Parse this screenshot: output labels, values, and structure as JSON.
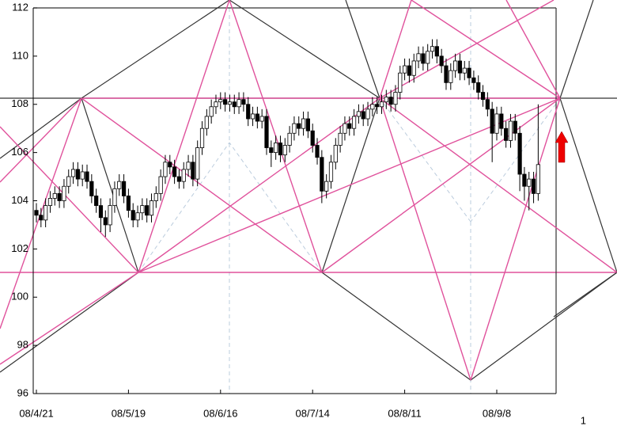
{
  "chart_data": {
    "type": "candlestick",
    "categories": [
      "08/4/21",
      null,
      null,
      null,
      null,
      null,
      null,
      null,
      null,
      null,
      null,
      null,
      null,
      null,
      null,
      null,
      null,
      null,
      null,
      null,
      "08/5/19",
      null,
      null,
      null,
      null,
      null,
      null,
      null,
      null,
      null,
      null,
      null,
      null,
      null,
      null,
      null,
      null,
      null,
      null,
      null,
      "08/6/16",
      null,
      null,
      null,
      null,
      null,
      null,
      null,
      null,
      null,
      null,
      null,
      null,
      null,
      null,
      null,
      null,
      null,
      null,
      null,
      "08/7/14",
      null,
      null,
      null,
      null,
      null,
      null,
      null,
      null,
      null,
      null,
      null,
      null,
      null,
      null,
      null,
      null,
      null,
      null,
      null,
      "08/8/11",
      null,
      null,
      null,
      null,
      null,
      null,
      null,
      null,
      null,
      null,
      null,
      null,
      null,
      null,
      null,
      null,
      null,
      null,
      null,
      "08/9/8",
      null,
      null,
      null,
      null,
      null,
      null,
      null,
      null,
      null
    ],
    "open": [
      103.6,
      103.4,
      103.2,
      103.8,
      104.1,
      104.3,
      104.0,
      104.6,
      105.0,
      105.3,
      104.9,
      105.2,
      104.8,
      104.2,
      103.8,
      103.3,
      103.0,
      103.8,
      104.5,
      104.8,
      104.2,
      103.6,
      103.2,
      103.5,
      103.8,
      103.4,
      104.0,
      104.3,
      105.0,
      105.6,
      105.4,
      105.0,
      104.8,
      105.3,
      105.6,
      104.9,
      106.2,
      107.0,
      107.5,
      107.9,
      108.1,
      108.2,
      108.0,
      108.1,
      107.9,
      108.2,
      108.0,
      107.4,
      107.6,
      107.3,
      107.5,
      106.2,
      106.0,
      106.4,
      105.9,
      106.3,
      106.8,
      107.2,
      107.0,
      107.4,
      106.9,
      106.3,
      105.8,
      104.4,
      104.8,
      105.6,
      106.3,
      106.8,
      107.2,
      107.0,
      107.5,
      107.7,
      107.4,
      107.8,
      108.0,
      107.9,
      108.1,
      108.3,
      108.0,
      108.5,
      109.3,
      109.6,
      109.2,
      109.8,
      110.1,
      109.7,
      110.2,
      110.4,
      110.0,
      109.6,
      108.9,
      109.4,
      109.8,
      109.3,
      109.5,
      109.1,
      108.9,
      108.5,
      108.2,
      107.8,
      106.8,
      107.6,
      107.0,
      106.5,
      107.3,
      106.8,
      105.1,
      104.6,
      104.9,
      104.3
    ],
    "high": [
      103.9,
      103.7,
      104.1,
      104.4,
      104.6,
      104.6,
      104.9,
      105.3,
      105.6,
      105.6,
      105.5,
      105.5,
      105.1,
      104.5,
      104.1,
      103.6,
      104.1,
      104.8,
      105.1,
      105.1,
      104.5,
      103.9,
      103.8,
      104.1,
      104.1,
      104.3,
      104.6,
      105.3,
      105.9,
      105.9,
      105.7,
      105.3,
      105.6,
      105.9,
      105.9,
      106.5,
      107.3,
      107.8,
      108.2,
      108.4,
      108.5,
      108.5,
      108.4,
      108.4,
      108.5,
      108.5,
      108.3,
      107.9,
      107.9,
      107.8,
      107.8,
      106.5,
      106.7,
      106.7,
      106.6,
      107.1,
      107.5,
      107.5,
      107.7,
      107.7,
      107.2,
      106.6,
      106.1,
      105.1,
      105.9,
      106.6,
      107.1,
      107.5,
      107.5,
      107.8,
      108.0,
      108.0,
      108.1,
      108.3,
      108.3,
      108.4,
      108.6,
      108.6,
      108.8,
      109.6,
      109.9,
      109.9,
      110.1,
      110.4,
      110.4,
      110.5,
      110.7,
      110.7,
      110.3,
      109.9,
      109.7,
      110.1,
      110.1,
      109.8,
      109.8,
      109.4,
      109.2,
      108.8,
      108.5,
      108.1,
      107.9,
      107.9,
      107.3,
      107.6,
      107.6,
      107.1,
      105.4,
      105.2,
      105.2,
      108.0
    ],
    "low": [
      103.1,
      102.9,
      102.9,
      103.5,
      103.8,
      103.7,
      103.7,
      104.3,
      104.7,
      104.6,
      104.6,
      104.5,
      103.9,
      103.5,
      102.7,
      102.5,
      102.7,
      103.5,
      104.2,
      103.9,
      103.3,
      102.9,
      102.9,
      103.2,
      103.1,
      103.1,
      103.7,
      104.0,
      104.7,
      105.1,
      104.7,
      104.5,
      104.5,
      105.0,
      104.6,
      104.6,
      105.9,
      106.7,
      107.2,
      107.6,
      107.8,
      107.7,
      107.7,
      107.6,
      107.6,
      107.7,
      107.1,
      107.1,
      107.0,
      107.0,
      105.9,
      105.4,
      105.7,
      105.6,
      105.6,
      106.0,
      106.5,
      106.7,
      106.7,
      106.6,
      106.0,
      105.5,
      103.9,
      104.1,
      104.5,
      105.3,
      106.0,
      106.5,
      106.7,
      106.7,
      107.2,
      107.1,
      107.1,
      107.5,
      107.6,
      107.6,
      107.8,
      107.7,
      107.7,
      108.2,
      109.0,
      108.9,
      108.9,
      109.5,
      109.4,
      109.4,
      109.9,
      109.7,
      109.3,
      108.6,
      108.6,
      109.1,
      109.0,
      109.0,
      108.8,
      108.6,
      108.2,
      107.9,
      107.5,
      105.6,
      106.5,
      106.7,
      106.2,
      106.2,
      106.5,
      104.4,
      104.0,
      103.6,
      103.9,
      104.0
    ],
    "close": [
      103.4,
      103.2,
      103.8,
      104.1,
      104.3,
      104.0,
      104.6,
      105.0,
      105.3,
      104.9,
      105.2,
      104.8,
      104.2,
      103.8,
      103.3,
      103.0,
      103.8,
      104.5,
      104.8,
      104.2,
      103.6,
      103.2,
      103.5,
      103.8,
      103.4,
      104.0,
      104.3,
      105.0,
      105.6,
      105.4,
      105.0,
      104.8,
      105.3,
      105.6,
      104.9,
      106.2,
      107.0,
      107.5,
      107.9,
      108.1,
      108.2,
      108.0,
      108.1,
      107.9,
      108.2,
      108.0,
      107.4,
      107.6,
      107.3,
      107.5,
      106.2,
      106.0,
      106.4,
      105.9,
      106.3,
      106.8,
      107.2,
      107.0,
      107.4,
      106.9,
      106.3,
      105.8,
      104.4,
      104.8,
      105.6,
      106.3,
      106.8,
      107.2,
      107.0,
      107.5,
      107.7,
      107.4,
      107.8,
      108.0,
      107.9,
      108.1,
      108.3,
      108.0,
      108.5,
      109.3,
      109.6,
      109.2,
      109.8,
      110.1,
      109.7,
      110.2,
      110.4,
      110.0,
      109.6,
      108.9,
      109.4,
      109.8,
      109.3,
      109.5,
      109.1,
      108.9,
      108.5,
      108.2,
      107.8,
      106.8,
      107.6,
      107.0,
      106.5,
      107.3,
      106.8,
      105.1,
      104.6,
      104.9,
      104.3,
      105.5
    ],
    "ylim": [
      96,
      112
    ],
    "yticks": [
      96,
      98,
      100,
      102,
      104,
      106,
      108,
      110,
      112
    ],
    "up_color": "#ffffff",
    "down_color": "#000000"
  },
  "page_number": "1"
}
